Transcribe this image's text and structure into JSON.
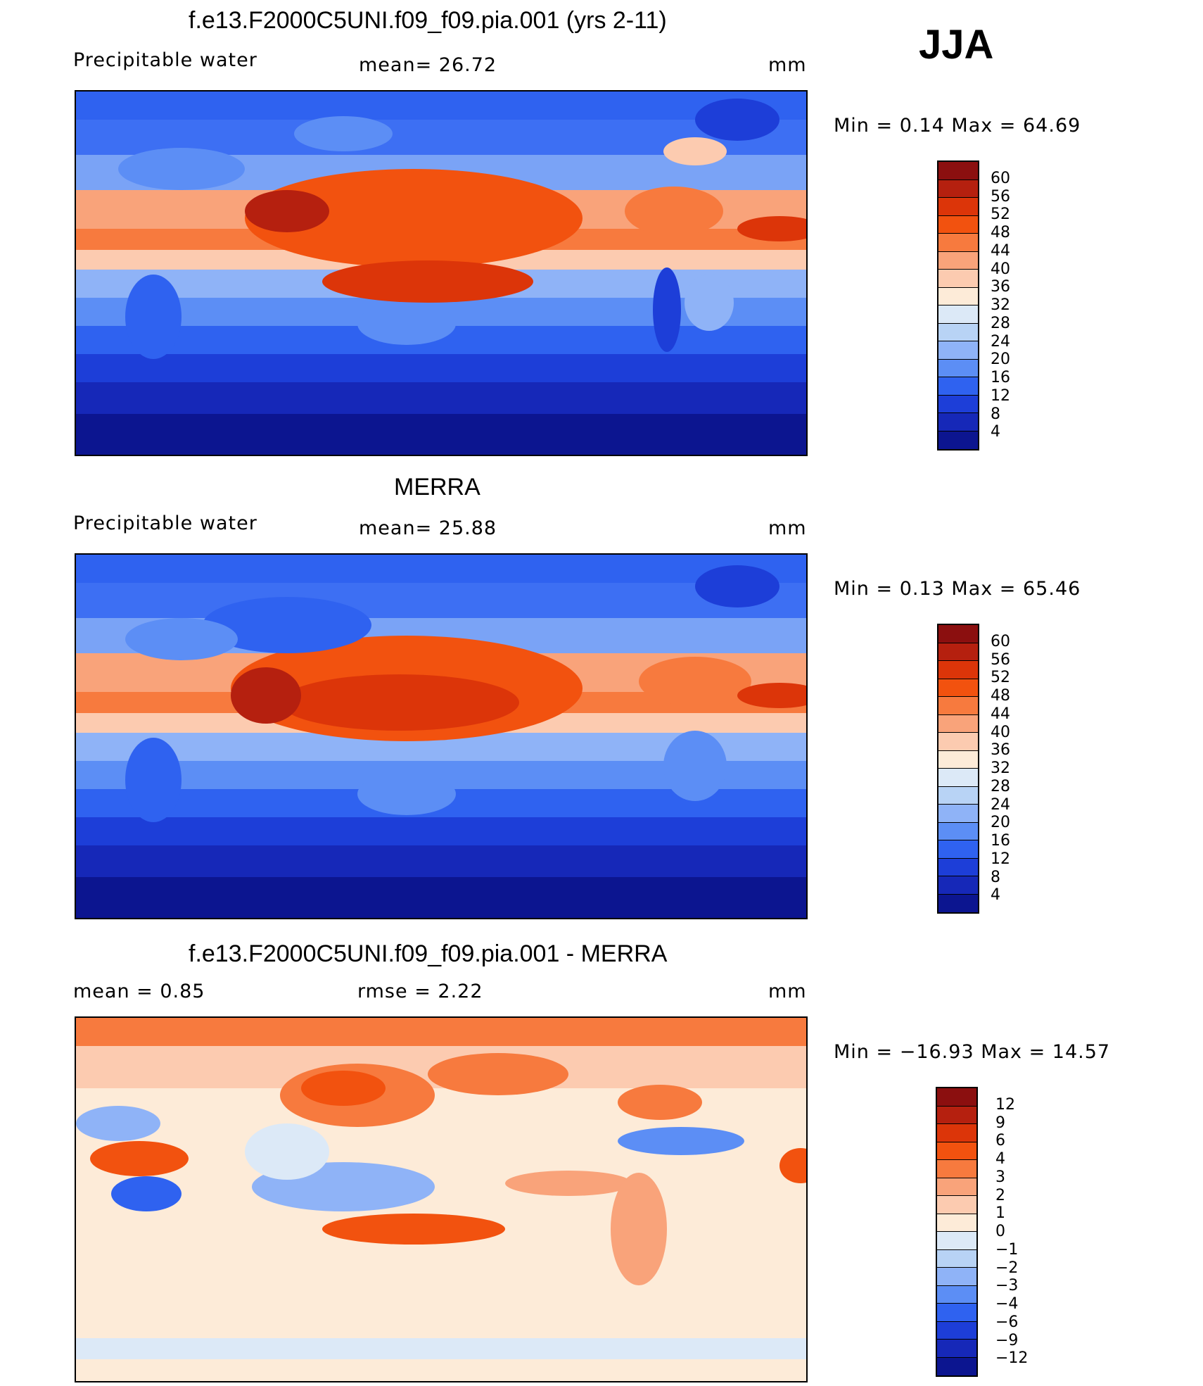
{
  "season": "JJA",
  "panels": [
    {
      "title": "f.e13.F2000C5UNI.f09_f09.pia.001 (yrs 2-11)",
      "left_label": "Precipitable  water",
      "mid_label": "mean=   26.72",
      "units": "mm",
      "minmax": "Min  =     0.14  Max  =    64.69",
      "colorbar": {
        "labels": [
          "60",
          "56",
          "52",
          "48",
          "44",
          "40",
          "36",
          "32",
          "28",
          "24",
          "20",
          "16",
          "12",
          "8",
          "4"
        ],
        "colors": [
          "#8b0f0f",
          "#b5200f",
          "#dc3509",
          "#f2520f",
          "#f77a3e",
          "#f9a37a",
          "#fccbb0",
          "#fdebd8",
          "#dce9f7",
          "#b8d3f5",
          "#8fb3f7",
          "#5c8ef5",
          "#2f62f0",
          "#1d3ed8",
          "#1628b8",
          "#0c1590"
        ]
      }
    },
    {
      "title": "MERRA",
      "left_label": "Precipitable  water",
      "mid_label": "mean=   25.88",
      "units": "mm",
      "minmax": "Min  =     0.13  Max  =    65.46",
      "colorbar": {
        "labels": [
          "60",
          "56",
          "52",
          "48",
          "44",
          "40",
          "36",
          "32",
          "28",
          "24",
          "20",
          "16",
          "12",
          "8",
          "4"
        ],
        "colors": [
          "#8b0f0f",
          "#b5200f",
          "#dc3509",
          "#f2520f",
          "#f77a3e",
          "#f9a37a",
          "#fccbb0",
          "#fdebd8",
          "#dce9f7",
          "#b8d3f5",
          "#8fb3f7",
          "#5c8ef5",
          "#2f62f0",
          "#1d3ed8",
          "#1628b8",
          "#0c1590"
        ]
      }
    },
    {
      "title": "f.e13.F2000C5UNI.f09_f09.pia.001 - MERRA",
      "left_label": "mean  =      0.85",
      "mid_label": "rmse  =      2.22",
      "units": "mm",
      "minmax": "Min  = −16.93  Max  =    14.57",
      "colorbar": {
        "labels": [
          "12",
          "9",
          "6",
          "4",
          "3",
          "2",
          "1",
          "0",
          "−1",
          "−2",
          "−3",
          "−4",
          "−6",
          "−9",
          "−12"
        ],
        "colors": [
          "#8b0f0f",
          "#b5200f",
          "#dc3509",
          "#f2520f",
          "#f77a3e",
          "#f9a37a",
          "#fccbb0",
          "#fdebd8",
          "#dce9f7",
          "#b8d3f5",
          "#8fb3f7",
          "#5c8ef5",
          "#2f62f0",
          "#1d3ed8",
          "#1628b8",
          "#0c1590"
        ]
      }
    }
  ]
}
